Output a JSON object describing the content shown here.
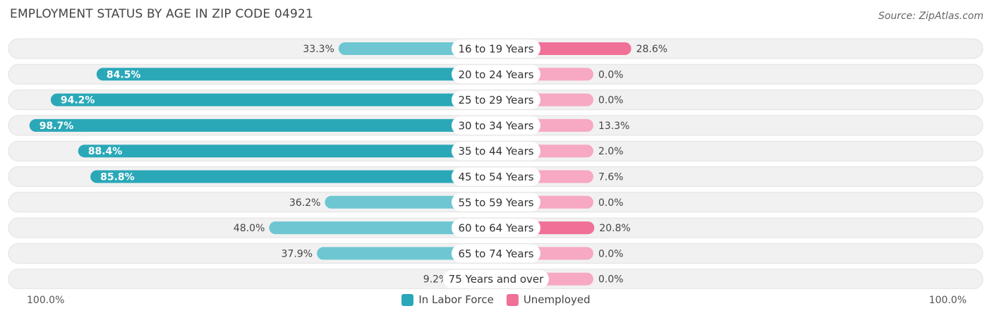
{
  "title": "EMPLOYMENT STATUS BY AGE IN ZIP CODE 04921",
  "source": "Source: ZipAtlas.com",
  "colors": {
    "labor_strong": "#2aa8b8",
    "labor_light": "#6ec6d2",
    "unemp_strong": "#f07097",
    "unemp_light": "#f7a8c2"
  },
  "chart_data": {
    "type": "bar",
    "orientation": "horizontal-diverging",
    "title": "EMPLOYMENT STATUS BY AGE IN ZIP CODE 04921",
    "categories": [
      "16 to 19 Years",
      "20 to 24 Years",
      "25 to 29 Years",
      "30 to 34 Years",
      "35 to 44 Years",
      "45 to 54 Years",
      "55 to 59 Years",
      "60 to 64 Years",
      "65 to 74 Years",
      "75 Years and over"
    ],
    "series": [
      {
        "name": "In Labor Force",
        "values": [
          33.3,
          84.5,
          94.2,
          98.7,
          88.4,
          85.8,
          36.2,
          48.0,
          37.9,
          9.2
        ],
        "labels": [
          "33.3%",
          "84.5%",
          "94.2%",
          "98.7%",
          "88.4%",
          "85.8%",
          "36.2%",
          "48.0%",
          "37.9%",
          "9.2%"
        ]
      },
      {
        "name": "Unemployed",
        "values": [
          28.6,
          0.0,
          0.0,
          13.3,
          2.0,
          7.6,
          0.0,
          20.8,
          0.0,
          0.0
        ],
        "labels": [
          "28.6%",
          "0.0%",
          "0.0%",
          "13.3%",
          "2.0%",
          "7.6%",
          "0.0%",
          "20.8%",
          "0.0%",
          "0.0%"
        ]
      }
    ],
    "axis_min_label": "100.0%",
    "axis_max_label": "100.0%",
    "xlim": [
      -100,
      100
    ],
    "legend_position": "bottom-center"
  }
}
